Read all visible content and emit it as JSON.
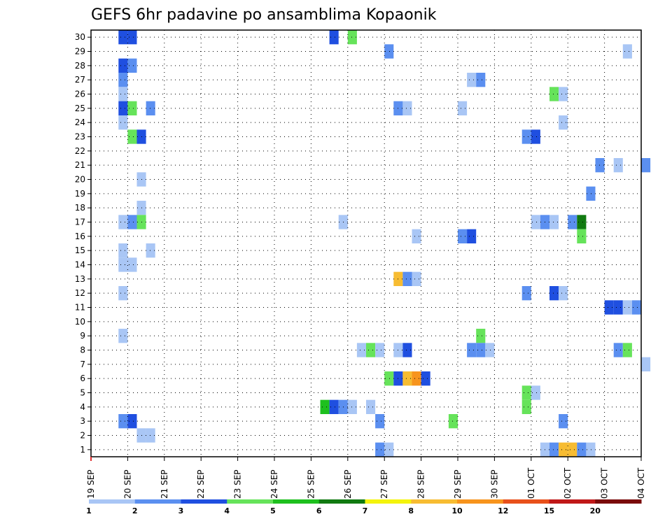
{
  "chart_data": {
    "type": "heatmap",
    "title": "GEFS 6hr padavine po ansamblima Kopaonik",
    "x_tick_labels": [
      "19 SEP",
      "20 SEP",
      "21 SEP",
      "22 SEP",
      "23 SEP",
      "24 SEP",
      "25 SEP",
      "26 SEP",
      "27 SEP",
      "28 SEP",
      "29 SEP",
      "30 SEP",
      "01 OCT",
      "02 OCT",
      "03 OCT",
      "04 OCT"
    ],
    "y_tick_labels": [
      "1",
      "2",
      "3",
      "4",
      "5",
      "6",
      "7",
      "8",
      "9",
      "10",
      "11",
      "12",
      "13",
      "14",
      "15",
      "16",
      "17",
      "18",
      "19",
      "20",
      "21",
      "22",
      "23",
      "24",
      "25",
      "26",
      "27",
      "28",
      "29",
      "30"
    ],
    "xlim_days": [
      0,
      15
    ],
    "step_hours": 6,
    "ylim": [
      0.5,
      30.5
    ],
    "grid": true,
    "colorbar": {
      "labels": [
        "1",
        "2",
        "3",
        "4",
        "5",
        "6",
        "7",
        "8",
        "10",
        "12",
        "15",
        "20"
      ],
      "colors": [
        "#a9c6f5",
        "#5b8ff0",
        "#1f4fe0",
        "#66e35a",
        "#1ec01e",
        "#117a11",
        "#f4f40c",
        "#f7bc32",
        "#f7941d",
        "#e8501b",
        "#c01818",
        "#7a0a0a"
      ]
    },
    "cells": [
      {
        "m": 30,
        "s": [
          [
            3,
            "#1f4fe0"
          ],
          [
            4,
            "#1f4fe0"
          ],
          [
            26,
            "#1f4fe0"
          ],
          [
            28,
            "#66e35a"
          ]
        ]
      },
      {
        "m": 29,
        "s": [
          [
            32,
            "#5b8ff0"
          ],
          [
            58,
            "#a9c6f5"
          ]
        ]
      },
      {
        "m": 28,
        "s": [
          [
            3,
            "#1f4fe0"
          ],
          [
            4,
            "#5b8ff0"
          ]
        ]
      },
      {
        "m": 27,
        "s": [
          [
            3,
            "#5b8ff0"
          ],
          [
            41,
            "#a9c6f5"
          ],
          [
            42,
            "#5b8ff0"
          ]
        ]
      },
      {
        "m": 26,
        "s": [
          [
            3,
            "#a9c6f5"
          ],
          [
            50,
            "#66e35a"
          ],
          [
            51,
            "#a9c6f5"
          ]
        ]
      },
      {
        "m": 25,
        "s": [
          [
            3,
            "#1f4fe0"
          ],
          [
            4,
            "#66e35a"
          ],
          [
            6,
            "#5b8ff0"
          ],
          [
            33,
            "#5b8ff0"
          ],
          [
            34,
            "#a9c6f5"
          ],
          [
            40,
            "#a9c6f5"
          ]
        ]
      },
      {
        "m": 24,
        "s": [
          [
            3,
            "#a9c6f5"
          ],
          [
            51,
            "#a9c6f5"
          ]
        ]
      },
      {
        "m": 23,
        "s": [
          [
            4,
            "#66e35a"
          ],
          [
            5,
            "#1f4fe0"
          ],
          [
            47,
            "#5b8ff0"
          ],
          [
            48,
            "#1f4fe0"
          ]
        ]
      },
      {
        "m": 21,
        "s": [
          [
            55,
            "#5b8ff0"
          ],
          [
            57,
            "#a9c6f5"
          ],
          [
            60,
            "#5b8ff0"
          ]
        ]
      },
      {
        "m": 20,
        "s": [
          [
            5,
            "#a9c6f5"
          ]
        ]
      },
      {
        "m": 19,
        "s": [
          [
            54,
            "#5b8ff0"
          ]
        ]
      },
      {
        "m": 18,
        "s": [
          [
            5,
            "#a9c6f5"
          ]
        ]
      },
      {
        "m": 17,
        "s": [
          [
            3,
            "#a9c6f5"
          ],
          [
            4,
            "#5b8ff0"
          ],
          [
            5,
            "#66e35a"
          ],
          [
            27,
            "#a9c6f5"
          ],
          [
            48,
            "#a9c6f5"
          ],
          [
            49,
            "#5b8ff0"
          ],
          [
            50,
            "#a9c6f5"
          ],
          [
            52,
            "#5b8ff0"
          ],
          [
            53,
            "#117a11"
          ]
        ]
      },
      {
        "m": 16,
        "s": [
          [
            35,
            "#a9c6f5"
          ],
          [
            40,
            "#5b8ff0"
          ],
          [
            41,
            "#1f4fe0"
          ],
          [
            53,
            "#66e35a"
          ]
        ]
      },
      {
        "m": 15,
        "s": [
          [
            3,
            "#a9c6f5"
          ],
          [
            6,
            "#a9c6f5"
          ]
        ]
      },
      {
        "m": 14,
        "s": [
          [
            3,
            "#a9c6f5"
          ],
          [
            4,
            "#a9c6f5"
          ]
        ]
      },
      {
        "m": 13,
        "s": [
          [
            33,
            "#f7bc32"
          ],
          [
            34,
            "#5b8ff0"
          ],
          [
            35,
            "#a9c6f5"
          ]
        ]
      },
      {
        "m": 12,
        "s": [
          [
            3,
            "#a9c6f5"
          ],
          [
            47,
            "#5b8ff0"
          ],
          [
            50,
            "#1f4fe0"
          ],
          [
            51,
            "#a9c6f5"
          ]
        ]
      },
      {
        "m": 11,
        "s": [
          [
            56,
            "#1f4fe0"
          ],
          [
            57,
            "#1f4fe0"
          ],
          [
            58,
            "#a9c6f5"
          ],
          [
            59,
            "#5b8ff0"
          ]
        ]
      },
      {
        "m": 9,
        "s": [
          [
            3,
            "#a9c6f5"
          ],
          [
            42,
            "#66e35a"
          ]
        ]
      },
      {
        "m": 8,
        "s": [
          [
            29,
            "#a9c6f5"
          ],
          [
            30,
            "#66e35a"
          ],
          [
            31,
            "#a9c6f5"
          ],
          [
            33,
            "#a9c6f5"
          ],
          [
            34,
            "#1f4fe0"
          ],
          [
            41,
            "#5b8ff0"
          ],
          [
            42,
            "#5b8ff0"
          ],
          [
            43,
            "#a9c6f5"
          ],
          [
            57,
            "#5b8ff0"
          ],
          [
            58,
            "#66e35a"
          ]
        ]
      },
      {
        "m": 7,
        "s": [
          [
            60,
            "#a9c6f5"
          ]
        ]
      },
      {
        "m": 6,
        "s": [
          [
            32,
            "#66e35a"
          ],
          [
            33,
            "#1f4fe0"
          ],
          [
            34,
            "#f7bc32"
          ],
          [
            35,
            "#f7941d"
          ],
          [
            36,
            "#1f4fe0"
          ]
        ]
      },
      {
        "m": 5,
        "s": [
          [
            47,
            "#66e35a"
          ],
          [
            48,
            "#a9c6f5"
          ]
        ]
      },
      {
        "m": 4,
        "s": [
          [
            25,
            "#1ec01e"
          ],
          [
            26,
            "#1f4fe0"
          ],
          [
            27,
            "#5b8ff0"
          ],
          [
            28,
            "#a9c6f5"
          ],
          [
            30,
            "#a9c6f5"
          ],
          [
            47,
            "#66e35a"
          ]
        ]
      },
      {
        "m": 3,
        "s": [
          [
            3,
            "#5b8ff0"
          ],
          [
            4,
            "#1f4fe0"
          ],
          [
            31,
            "#5b8ff0"
          ],
          [
            39,
            "#66e35a"
          ],
          [
            51,
            "#5b8ff0"
          ]
        ]
      },
      {
        "m": 2,
        "s": [
          [
            5,
            "#a9c6f5"
          ],
          [
            6,
            "#a9c6f5"
          ]
        ]
      },
      {
        "m": 1,
        "s": [
          [
            31,
            "#5b8ff0"
          ],
          [
            32,
            "#a9c6f5"
          ],
          [
            49,
            "#a9c6f5"
          ],
          [
            50,
            "#5b8ff0"
          ],
          [
            51,
            "#f7bc32"
          ],
          [
            52,
            "#f7bc32"
          ],
          [
            53,
            "#5b8ff0"
          ],
          [
            54,
            "#a9c6f5"
          ]
        ]
      }
    ]
  }
}
